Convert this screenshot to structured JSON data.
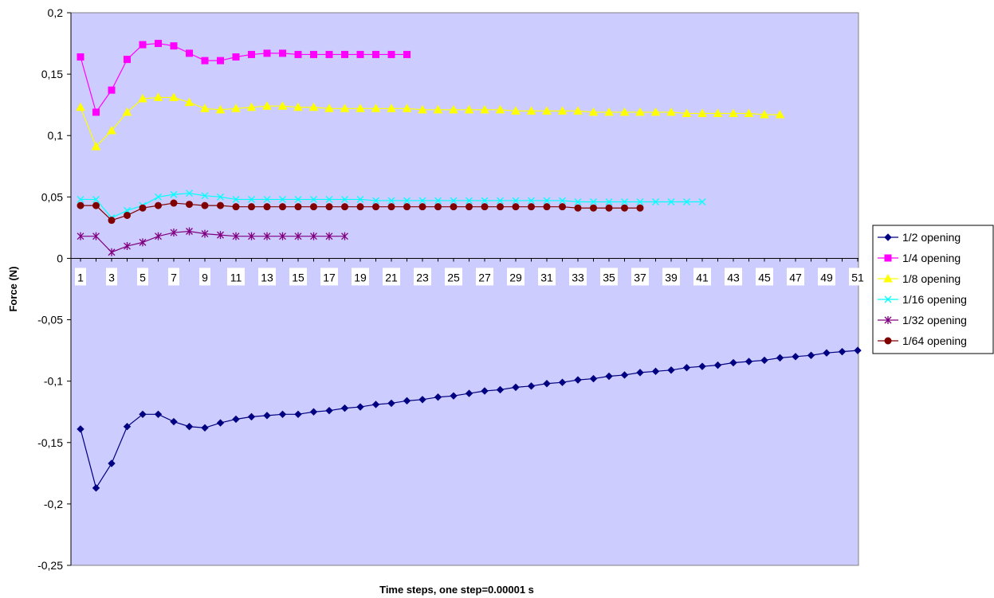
{
  "chart_data": {
    "type": "line",
    "title": "",
    "xlabel": "Time steps, one step=0.00001 s",
    "ylabel": "Force (N)",
    "ylim": [
      -0.25,
      0.2
    ],
    "xlim": [
      1,
      51
    ],
    "y_ticks": [
      0.2,
      0.15,
      0.1,
      0.05,
      0,
      -0.05,
      -0.1,
      -0.15,
      -0.2,
      -0.25
    ],
    "y_tick_labels": [
      "0,2",
      "0,15",
      "0,1",
      "0,05",
      "0",
      "-0,05",
      "-0,1",
      "-0,15",
      "-0,2",
      "-0,25"
    ],
    "x_tick_labels": [
      "1",
      "3",
      "5",
      "7",
      "9",
      "11",
      "13",
      "15",
      "17",
      "19",
      "21",
      "23",
      "25",
      "27",
      "29",
      "31",
      "33",
      "35",
      "37",
      "39",
      "41",
      "43",
      "45",
      "47",
      "49",
      "51"
    ],
    "plot_background": "#ccccff",
    "grid": false,
    "legend_position": "right",
    "series": [
      {
        "name": "1/2 opening",
        "color": "#000080",
        "marker": "diamond",
        "values": [
          -0.139,
          -0.187,
          -0.167,
          -0.137,
          -0.127,
          -0.127,
          -0.133,
          -0.137,
          -0.138,
          -0.134,
          -0.131,
          -0.129,
          -0.128,
          -0.127,
          -0.127,
          -0.125,
          -0.124,
          -0.122,
          -0.121,
          -0.119,
          -0.118,
          -0.116,
          -0.115,
          -0.113,
          -0.112,
          -0.11,
          -0.108,
          -0.107,
          -0.105,
          -0.104,
          -0.102,
          -0.101,
          -0.099,
          -0.098,
          -0.096,
          -0.095,
          -0.093,
          -0.092,
          -0.091,
          -0.089,
          -0.088,
          -0.087,
          -0.085,
          -0.084,
          -0.083,
          -0.081,
          -0.08,
          -0.079,
          -0.077,
          -0.076,
          -0.075
        ]
      },
      {
        "name": "1/4 opening",
        "color": "#ff00ff",
        "marker": "square",
        "values": [
          0.164,
          0.119,
          0.137,
          0.162,
          0.174,
          0.175,
          0.173,
          0.167,
          0.161,
          0.161,
          0.164,
          0.166,
          0.167,
          0.167,
          0.166,
          0.166,
          0.166,
          0.166,
          0.166,
          0.166,
          0.166,
          0.166
        ]
      },
      {
        "name": "1/8 opening",
        "color": "#ffff00",
        "marker": "triangle",
        "values": [
          0.123,
          0.091,
          0.104,
          0.119,
          0.13,
          0.131,
          0.131,
          0.127,
          0.122,
          0.121,
          0.122,
          0.123,
          0.124,
          0.124,
          0.123,
          0.123,
          0.122,
          0.122,
          0.122,
          0.122,
          0.122,
          0.122,
          0.121,
          0.121,
          0.121,
          0.121,
          0.121,
          0.121,
          0.12,
          0.12,
          0.12,
          0.12,
          0.12,
          0.119,
          0.119,
          0.119,
          0.119,
          0.119,
          0.119,
          0.118,
          0.118,
          0.118,
          0.118,
          0.118,
          0.117,
          0.117
        ]
      },
      {
        "name": "1/16 opening",
        "color": "#00ffff",
        "marker": "x",
        "values": [
          0.048,
          0.048,
          0.033,
          0.039,
          0.043,
          0.05,
          0.052,
          0.053,
          0.051,
          0.05,
          0.048,
          0.048,
          0.048,
          0.048,
          0.048,
          0.048,
          0.048,
          0.048,
          0.048,
          0.047,
          0.047,
          0.047,
          0.047,
          0.047,
          0.047,
          0.047,
          0.047,
          0.047,
          0.047,
          0.047,
          0.047,
          0.047,
          0.046,
          0.046,
          0.046,
          0.046,
          0.046,
          0.046,
          0.046,
          0.046,
          0.046
        ]
      },
      {
        "name": "1/32 opening",
        "color": "#800080",
        "marker": "star",
        "values": [
          0.018,
          0.018,
          0.005,
          0.01,
          0.013,
          0.018,
          0.021,
          0.022,
          0.02,
          0.019,
          0.018,
          0.018,
          0.018,
          0.018,
          0.018,
          0.018,
          0.018,
          0.018
        ]
      },
      {
        "name": "1/64 opening",
        "color": "#800000",
        "marker": "circle",
        "values": [
          0.043,
          0.043,
          0.031,
          0.035,
          0.041,
          0.043,
          0.045,
          0.044,
          0.043,
          0.043,
          0.042,
          0.042,
          0.042,
          0.042,
          0.042,
          0.042,
          0.042,
          0.042,
          0.042,
          0.042,
          0.042,
          0.042,
          0.042,
          0.042,
          0.042,
          0.042,
          0.042,
          0.042,
          0.042,
          0.042,
          0.042,
          0.042,
          0.041,
          0.041,
          0.041,
          0.041,
          0.041
        ]
      }
    ]
  }
}
